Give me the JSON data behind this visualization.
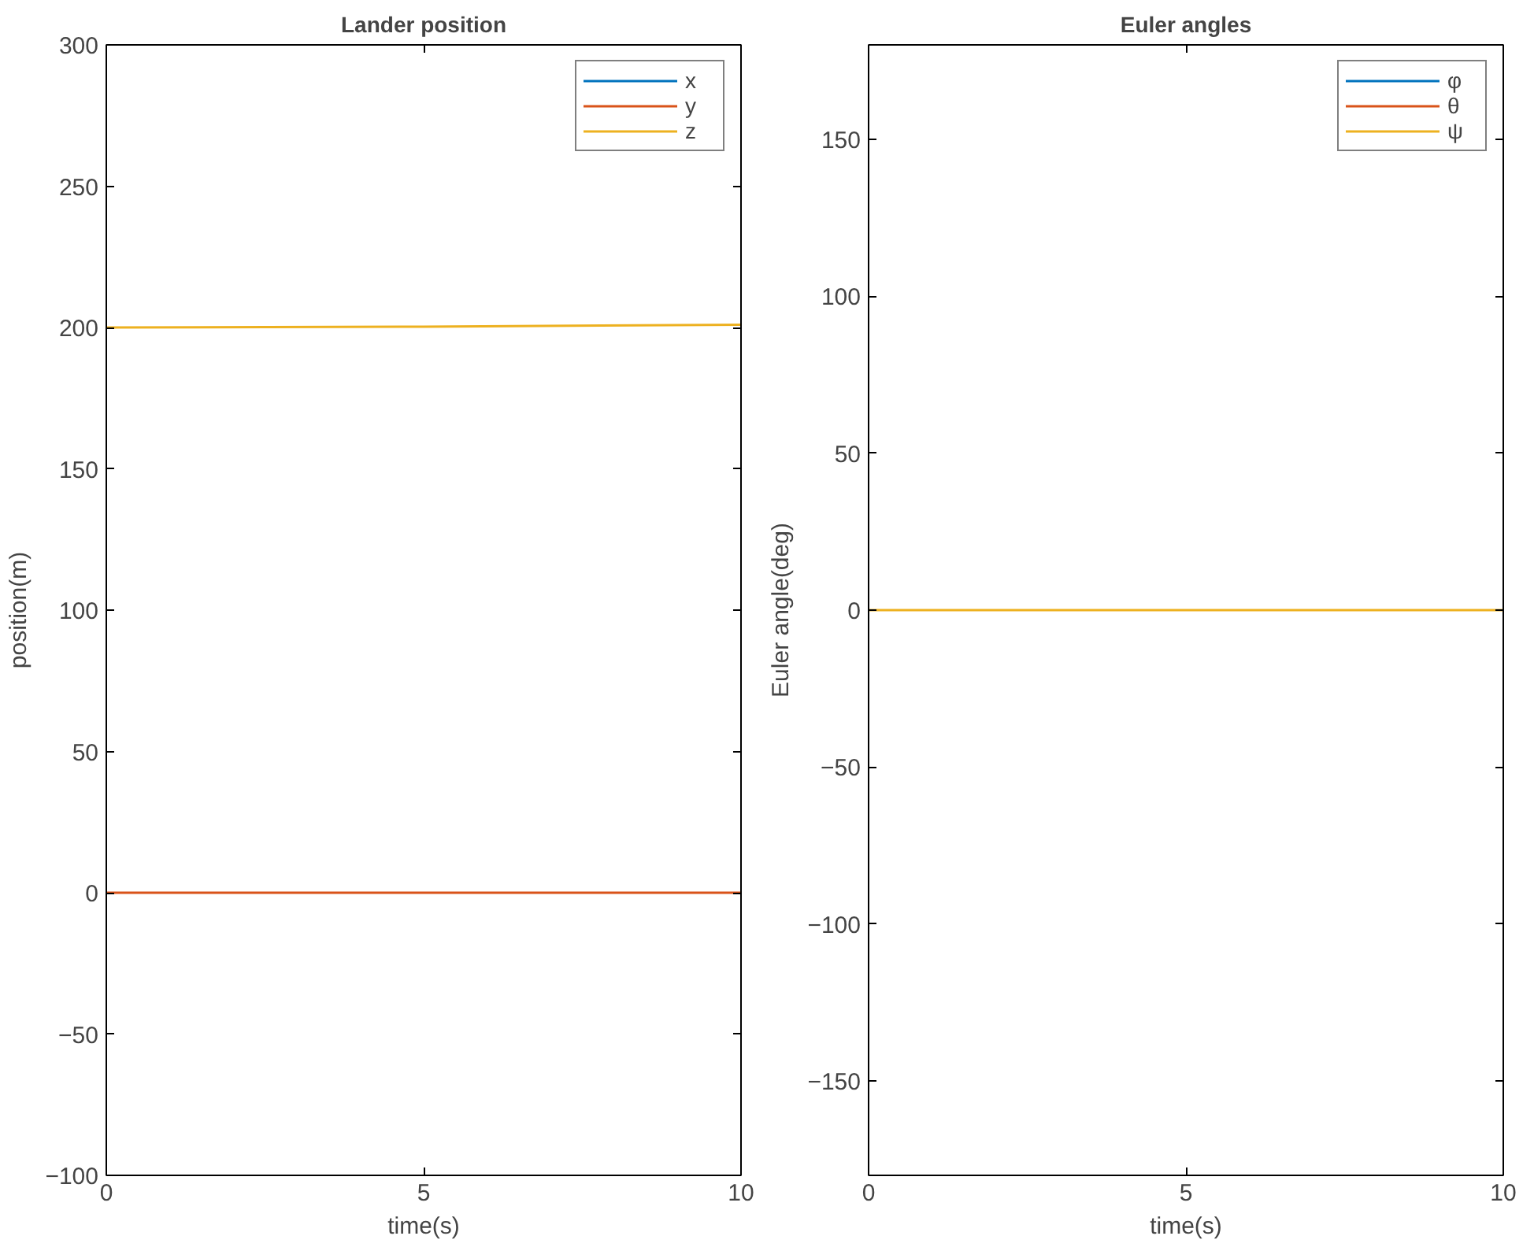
{
  "chart_data": [
    {
      "type": "line",
      "title": "Lander position",
      "xlabel": "time(s)",
      "ylabel": "position(m)",
      "x": [
        0,
        5,
        10
      ],
      "xlim": [
        0,
        10
      ],
      "xticks": [
        0,
        5,
        10
      ],
      "ylim": [
        -100,
        300
      ],
      "yticks": [
        -100,
        -50,
        0,
        50,
        100,
        150,
        200,
        250,
        300
      ],
      "legend": "top right",
      "grid": false,
      "series": [
        {
          "name": "x",
          "color": "#0072bd",
          "values": [
            null,
            null,
            null
          ]
        },
        {
          "name": "y",
          "color": "#d95319",
          "values": [
            0,
            0,
            0
          ]
        },
        {
          "name": "z",
          "color": "#edb120",
          "values": [
            200,
            200.3,
            201
          ]
        }
      ]
    },
    {
      "type": "line",
      "title": "Euler angles",
      "xlabel": "time(s)",
      "ylabel": "Euler angle(deg)",
      "x": [
        0,
        5,
        10
      ],
      "xlim": [
        0,
        10
      ],
      "xticks": [
        0,
        5,
        10
      ],
      "ylim": [
        -180,
        180
      ],
      "yticks": [
        -150,
        -100,
        -50,
        0,
        50,
        100,
        150
      ],
      "legend": "top right",
      "grid": false,
      "series": [
        {
          "name": "φ",
          "color": "#0072bd",
          "values": [
            null,
            null,
            null
          ]
        },
        {
          "name": "θ",
          "color": "#d95319",
          "values": [
            null,
            null,
            null
          ]
        },
        {
          "name": "ψ",
          "color": "#edb120",
          "values": [
            0,
            0,
            0
          ]
        }
      ]
    }
  ]
}
